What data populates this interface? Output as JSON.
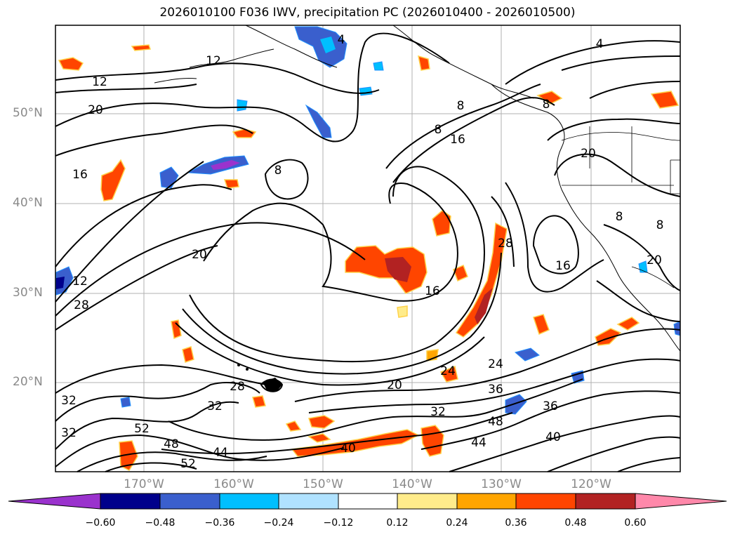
{
  "title": "2026010100 F036 IWV, precipitation PC (2026010400 - 2026010500)",
  "lat_labels": [
    "50°N",
    "40°N",
    "30°N",
    "20°N"
  ],
  "lon_labels": [
    "170°W",
    "160°W",
    "150°W",
    "140°W",
    "130°W",
    "120°W"
  ],
  "colorbar": {
    "ticks": [
      "−0.60",
      "−0.48",
      "−0.36",
      "−0.24",
      "−0.12",
      "0.12",
      "0.24",
      "0.36",
      "0.48",
      "0.60"
    ],
    "colors": [
      "#9a32cd",
      "#00008b",
      "#3a5fcd",
      "#00bfff",
      "#b0e2ff",
      "#ffffff",
      "#ffec8b",
      "#ffa500",
      "#ff4500",
      "#b22222",
      "#ff88aa"
    ]
  },
  "contour_labels": [
    "4",
    "12",
    "20",
    "16",
    "12",
    "28",
    "8",
    "8",
    "16",
    "20",
    "8",
    "20",
    "16",
    "28",
    "16",
    "28",
    "32",
    "20",
    "24",
    "24",
    "36",
    "32",
    "48",
    "36",
    "44",
    "40",
    "40",
    "44",
    "48",
    "52",
    "32",
    "32",
    "52",
    "12",
    "4",
    "8",
    "8",
    "8",
    "20"
  ],
  "colors": {
    "frame": "#000000",
    "grid": "#b0b0b0",
    "axis_label": "#8a8a8a"
  }
}
